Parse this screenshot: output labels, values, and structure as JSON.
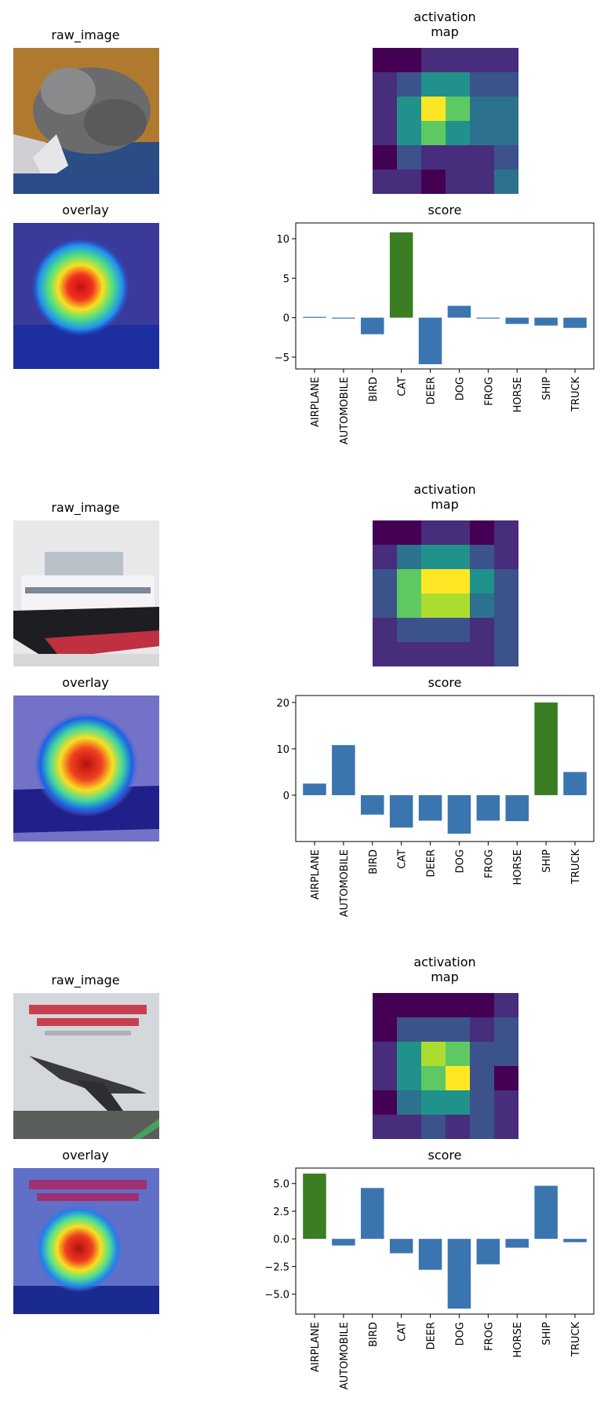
{
  "labels": {
    "raw_image": "raw_image",
    "activation_map": "activation\nmap",
    "overlay": "overlay",
    "score": "score"
  },
  "colors": {
    "bar_default": "#3b75af",
    "bar_predicted": "#3a7d22",
    "viridis": [
      "#440154",
      "#472d7b",
      "#3b528b",
      "#2c728e",
      "#21918c",
      "#28ae80",
      "#5ec962",
      "#addc30",
      "#fde725"
    ]
  },
  "chart_data": [
    {
      "type": "bar",
      "title": "score",
      "categories": [
        "AIRPLANE",
        "AUTOMOBILE",
        "BIRD",
        "CAT",
        "DEER",
        "DOG",
        "FROG",
        "HORSE",
        "SHIP",
        "TRUCK"
      ],
      "values": [
        0.1,
        -0.1,
        -2.1,
        10.8,
        -5.9,
        1.5,
        0.0,
        -0.8,
        -1.0,
        -1.3
      ],
      "predicted": "CAT",
      "ylim": [
        -6.5,
        12.0
      ],
      "yticks": [
        -5,
        0,
        5,
        10
      ],
      "ytick_labels": [
        "−5",
        "0",
        "5",
        "10"
      ],
      "activation_map": [
        [
          0.03,
          0.03,
          0.1,
          0.1,
          0.15,
          0.18
        ],
        [
          0.08,
          0.3,
          0.5,
          0.5,
          0.3,
          0.25
        ],
        [
          0.12,
          0.55,
          1.0,
          0.7,
          0.4,
          0.35
        ],
        [
          0.12,
          0.45,
          0.75,
          0.55,
          0.4,
          0.35
        ],
        [
          0.05,
          0.2,
          0.15,
          0.12,
          0.1,
          0.3
        ],
        [
          0.08,
          0.08,
          0.03,
          0.1,
          0.12,
          0.35
        ]
      ]
    },
    {
      "type": "bar",
      "title": "score",
      "categories": [
        "AIRPLANE",
        "AUTOMOBILE",
        "BIRD",
        "CAT",
        "DEER",
        "DOG",
        "FROG",
        "HORSE",
        "SHIP",
        "TRUCK"
      ],
      "values": [
        2.5,
        10.8,
        -4.2,
        -7.0,
        -5.5,
        -8.3,
        -5.5,
        -5.6,
        20.0,
        5.0
      ],
      "predicted": "SHIP",
      "ylim": [
        -10.0,
        21.5
      ],
      "yticks": [
        0,
        10,
        20
      ],
      "ytick_labels": [
        "0",
        "10",
        "20"
      ],
      "activation_map": [
        [
          0.03,
          0.05,
          0.08,
          0.08,
          0.05,
          0.1
        ],
        [
          0.15,
          0.4,
          0.55,
          0.55,
          0.3,
          0.12
        ],
        [
          0.3,
          0.7,
          0.95,
          1.0,
          0.45,
          0.2
        ],
        [
          0.3,
          0.7,
          0.9,
          0.85,
          0.4,
          0.2
        ],
        [
          0.08,
          0.25,
          0.25,
          0.25,
          0.15,
          0.2
        ],
        [
          0.1,
          0.15,
          0.1,
          0.15,
          0.12,
          0.2
        ]
      ]
    },
    {
      "type": "bar",
      "title": "score",
      "categories": [
        "AIRPLANE",
        "AUTOMOBILE",
        "BIRD",
        "CAT",
        "DEER",
        "DOG",
        "FROG",
        "HORSE",
        "SHIP",
        "TRUCK"
      ],
      "values": [
        5.9,
        -0.6,
        4.6,
        -1.3,
        -2.8,
        -6.3,
        -2.3,
        -0.8,
        4.8,
        -0.3
      ],
      "predicted": "AIRPLANE",
      "ylim": [
        -6.8,
        6.4
      ],
      "yticks": [
        5.0,
        2.5,
        0.0,
        -2.5,
        -5.0
      ],
      "ytick_labels": [
        "5.0",
        "2.5",
        "0.0",
        "−2.5",
        "−5.0"
      ],
      "activation_map": [
        [
          0.02,
          0.02,
          0.05,
          0.05,
          0.03,
          0.15
        ],
        [
          0.05,
          0.2,
          0.3,
          0.3,
          0.15,
          0.2
        ],
        [
          0.1,
          0.45,
          0.9,
          0.7,
          0.25,
          0.3
        ],
        [
          0.1,
          0.45,
          0.8,
          1.0,
          0.25,
          0.05
        ],
        [
          0.05,
          0.35,
          0.5,
          0.5,
          0.2,
          0.15
        ],
        [
          0.12,
          0.15,
          0.2,
          0.18,
          0.2,
          0.15
        ]
      ]
    }
  ]
}
